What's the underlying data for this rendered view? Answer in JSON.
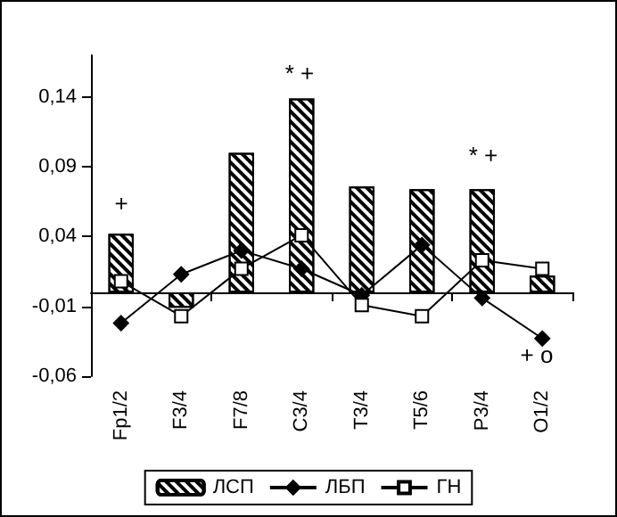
{
  "chart_data": {
    "type": "bar",
    "categories": [
      "Fp1/2",
      "F3/4",
      "F7/8",
      "C3/4",
      "T3/4",
      "T5/6",
      "P3/4",
      "O1/2"
    ],
    "series": [
      {
        "name": "ЛСП",
        "color": "#000000",
        "values": [
          0.042,
          -0.011,
          0.1,
          0.139,
          0.076,
          0.074,
          0.074,
          0.012
        ]
      },
      {
        "name": "ЛБП",
        "type": "line",
        "marker": "diamond",
        "color": "#000000",
        "values": [
          -0.022,
          0.013,
          0.03,
          0.017,
          -0.002,
          0.034,
          -0.004,
          -0.033
        ]
      },
      {
        "name": "ГН",
        "type": "line",
        "marker": "square",
        "color": "#000000",
        "values": [
          0.008,
          -0.017,
          0.017,
          0.041,
          -0.009,
          -0.017,
          0.023,
          0.017
        ]
      }
    ],
    "ylim": [
      -0.06,
      0.17
    ],
    "yticks": [
      {
        "value": -0.06,
        "label": "-0,06"
      },
      {
        "value": -0.01,
        "label": "-0,01"
      },
      {
        "value": 0.04,
        "label": "0,04"
      },
      {
        "value": 0.09,
        "label": "0,09"
      },
      {
        "value": 0.14,
        "label": "0,14"
      }
    ],
    "annotations": [
      "+",
      "* +",
      "* +",
      "+ o"
    ],
    "grid": false,
    "legend": "bottom"
  }
}
